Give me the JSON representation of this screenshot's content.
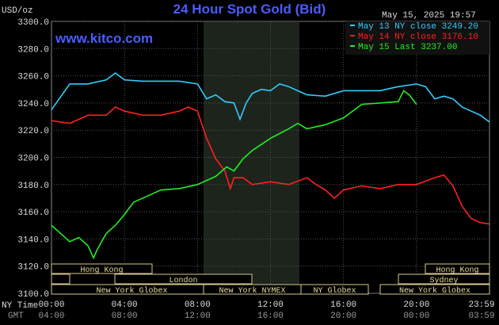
{
  "chart_data": {
    "type": "line",
    "title": "24 Hour Spot Gold (Bid)",
    "watermark": "www.kitco.com",
    "timestamp": "May 15, 2025 19:57",
    "ylabel": "USD/oz",
    "xlabel": "NY Time",
    "x2label": "GMT",
    "xlim": [
      0,
      24
    ],
    "xticks": [
      {
        "value": 0,
        "label": "00:00"
      },
      {
        "value": 4,
        "label": "04:00"
      },
      {
        "value": 8,
        "label": "08:00"
      },
      {
        "value": 12,
        "label": "12:00"
      },
      {
        "value": 16,
        "label": "16:00"
      },
      {
        "value": 20,
        "label": "20:00"
      },
      {
        "value": 23.98,
        "label": "23:59"
      }
    ],
    "x2ticks": [
      {
        "value": 0,
        "label": "04:00"
      },
      {
        "value": 4,
        "label": "08:00"
      },
      {
        "value": 8,
        "label": "12:00"
      },
      {
        "value": 12,
        "label": "16:00"
      },
      {
        "value": 16,
        "label": "20:00"
      },
      {
        "value": 20,
        "label": "00:00"
      },
      {
        "value": 23.98,
        "label": "03:59"
      }
    ],
    "ylim": [
      3100,
      3300
    ],
    "yticks": [
      {
        "value": 3100,
        "label": "3100.0"
      },
      {
        "value": 3120,
        "label": "3120.0"
      },
      {
        "value": 3140,
        "label": "3140.0"
      },
      {
        "value": 3160,
        "label": "3160.0"
      },
      {
        "value": 3180,
        "label": "3180.0"
      },
      {
        "value": 3200,
        "label": "3200.0"
      },
      {
        "value": 3220,
        "label": "3220.0"
      },
      {
        "value": 3240,
        "label": "3240.0"
      },
      {
        "value": 3260,
        "label": "3260.0"
      },
      {
        "value": 3280,
        "label": "3280.0"
      },
      {
        "value": 3300,
        "label": "3300.0"
      }
    ],
    "grid": true,
    "sessions": [
      "Hong Kong",
      "Hong Kong",
      "London",
      "Sydney",
      "New York Globex",
      "New York NYMEX",
      "NY Globex",
      "New York Globex"
    ],
    "series": [
      {
        "name": "May 13 NY close 3249.20",
        "color": "#33ccff",
        "x": [
          0,
          1,
          2,
          3,
          3.5,
          4,
          5,
          6,
          7,
          8,
          8.5,
          9,
          9.5,
          10,
          10.33,
          10.67,
          11,
          11.5,
          12,
          12.5,
          13,
          13.5,
          14,
          15,
          16,
          17,
          18,
          19,
          20,
          20.5,
          21,
          21.5,
          22,
          22.5,
          23,
          23.5,
          24
        ],
        "values": [
          3235,
          3254,
          3254,
          3257,
          3262,
          3257,
          3256,
          3256,
          3256,
          3254,
          3243,
          3246,
          3241,
          3240,
          3228,
          3240,
          3247,
          3250,
          3249,
          3254,
          3252,
          3249,
          3246,
          3245,
          3249,
          3249,
          3249,
          3252,
          3254,
          3252,
          3243,
          3245,
          3243,
          3237,
          3234,
          3231,
          3226
        ]
      },
      {
        "name": "May 14 NY close 3176.10",
        "color": "#ff2020",
        "x": [
          0,
          1,
          2,
          3,
          3.5,
          4,
          5,
          6,
          7,
          7.5,
          8,
          8.5,
          9,
          9.5,
          9.8,
          10,
          10.5,
          11,
          12,
          13,
          14,
          14.5,
          15,
          15.5,
          16,
          17,
          18,
          19,
          20,
          21,
          21.5,
          22,
          22.5,
          23,
          23.5,
          24
        ],
        "values": [
          3227,
          3225,
          3231,
          3231,
          3237,
          3234,
          3231,
          3231,
          3234,
          3237,
          3234,
          3214,
          3199,
          3190,
          3177,
          3185,
          3185,
          3180,
          3182,
          3180,
          3185,
          3180,
          3176,
          3170,
          3176,
          3179,
          3177,
          3180,
          3180,
          3185,
          3187,
          3179,
          3164,
          3155,
          3152,
          3151
        ]
      },
      {
        "name": "May 15 Last 3237.00",
        "color": "#22ee22",
        "x": [
          0,
          0.5,
          1,
          1.5,
          2,
          2.3,
          2.5,
          3,
          3.5,
          4,
          4.5,
          5,
          6,
          7,
          8,
          9,
          9.6,
          10,
          10.5,
          11,
          12,
          13,
          13.5,
          14,
          15,
          16,
          17,
          18,
          19,
          19.3,
          19.6,
          20
        ],
        "values": [
          3150,
          3144,
          3138,
          3141,
          3135,
          3126,
          3132,
          3144,
          3150,
          3158,
          3167,
          3170,
          3176,
          3177,
          3180,
          3186,
          3193,
          3190,
          3199,
          3205,
          3214,
          3221,
          3225,
          3221,
          3224,
          3229,
          3239,
          3240,
          3241,
          3249,
          3246,
          3239
        ]
      }
    ]
  }
}
